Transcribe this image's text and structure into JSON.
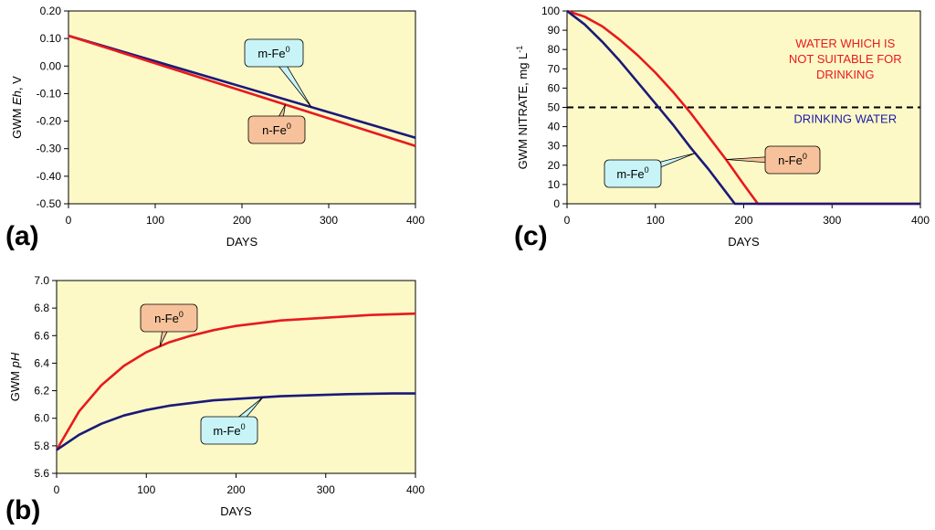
{
  "chart_data": [
    {
      "id": "a",
      "type": "line",
      "panel_label": "(a)",
      "xlabel": "DAYS",
      "ylabel_prefix": "GWM ",
      "ylabel_italic": "Eh",
      "ylabel_suffix": ", V",
      "xlim": [
        0,
        400
      ],
      "ylim": [
        -0.5,
        0.2
      ],
      "xticks": [
        0,
        100,
        200,
        300,
        400
      ],
      "yticks": [
        0.2,
        0.1,
        0.0,
        -0.1,
        -0.2,
        -0.3,
        -0.4,
        -0.5
      ],
      "ytick_labels": [
        "0.20",
        "0.10",
        "0.00",
        "-0.10",
        "-0.20",
        "-0.30",
        "-0.40",
        "-0.50"
      ],
      "series": [
        {
          "name": "m-Fe0",
          "color": "#1a1a7a",
          "x": [
            0,
            400
          ],
          "y": [
            0.11,
            -0.26
          ]
        },
        {
          "name": "n-Fe0",
          "color": "#e8191f",
          "x": [
            0,
            400
          ],
          "y": [
            0.11,
            -0.29
          ]
        }
      ],
      "callouts": [
        {
          "text": "m-Fe",
          "sup": "0",
          "fill": "#c8f4f7",
          "series": "m-Fe0",
          "at_x": 280
        },
        {
          "text": "n-Fe",
          "sup": "0",
          "fill": "#f7c29b",
          "series": "n-Fe0",
          "at_x": 250
        }
      ]
    },
    {
      "id": "b",
      "type": "line",
      "panel_label": "(b)",
      "xlabel": "DAYS",
      "ylabel_prefix": "GWM ",
      "ylabel_italic": "pH",
      "ylabel_suffix": "",
      "xlim": [
        0,
        400
      ],
      "ylim": [
        5.6,
        7.0
      ],
      "xticks": [
        0,
        100,
        200,
        300,
        400
      ],
      "yticks": [
        7.0,
        6.8,
        6.6,
        6.4,
        6.2,
        6.0,
        5.8,
        5.6
      ],
      "ytick_labels": [
        "7.0",
        "6.8",
        "6.6",
        "6.4",
        "6.2",
        "6.0",
        "5.8",
        "5.6"
      ],
      "series": [
        {
          "name": "n-Fe0",
          "color": "#e8191f",
          "x": [
            0,
            25,
            50,
            75,
            100,
            125,
            150,
            175,
            200,
            225,
            250,
            275,
            300,
            325,
            350,
            375,
            400
          ],
          "y": [
            5.77,
            6.05,
            6.24,
            6.38,
            6.48,
            6.55,
            6.6,
            6.64,
            6.67,
            6.69,
            6.71,
            6.72,
            6.73,
            6.74,
            6.75,
            6.755,
            6.76
          ]
        },
        {
          "name": "m-Fe0",
          "color": "#1a1a7a",
          "x": [
            0,
            25,
            50,
            75,
            100,
            125,
            150,
            175,
            200,
            225,
            250,
            275,
            300,
            325,
            350,
            375,
            400
          ],
          "y": [
            5.77,
            5.88,
            5.96,
            6.02,
            6.06,
            6.09,
            6.11,
            6.13,
            6.14,
            6.15,
            6.16,
            6.165,
            6.17,
            6.175,
            6.178,
            6.18,
            6.18
          ]
        }
      ],
      "callouts": [
        {
          "text": "n-Fe",
          "sup": "0",
          "fill": "#f7c29b",
          "series": "n-Fe0",
          "at_x": 115
        },
        {
          "text": "m-Fe",
          "sup": "0",
          "fill": "#c8f4f7",
          "series": "m-Fe0",
          "at_x": 230
        }
      ]
    },
    {
      "id": "c",
      "type": "line",
      "panel_label": "(c)",
      "xlabel": "DAYS",
      "ylabel_prefix": "GWM NITRATE, mg L",
      "ylabel_italic": "",
      "ylabel_suffix": "",
      "ylabel_sup": "-1",
      "xlim": [
        0,
        400
      ],
      "ylim": [
        0,
        100
      ],
      "xticks": [
        0,
        100,
        200,
        300,
        400
      ],
      "yticks": [
        100,
        90,
        80,
        70,
        60,
        50,
        40,
        30,
        20,
        10,
        0
      ],
      "ytick_labels": [
        "100",
        "90",
        "80",
        "70",
        "60",
        "50",
        "40",
        "30",
        "20",
        "10",
        "0"
      ],
      "threshold": 50,
      "series": [
        {
          "name": "n-Fe0",
          "color": "#e8191f",
          "x": [
            0,
            20,
            40,
            60,
            80,
            100,
            120,
            140,
            160,
            180,
            200,
            216,
            230,
            400
          ],
          "y": [
            100,
            97,
            92,
            85,
            77,
            68,
            58,
            47,
            35,
            23,
            10,
            0,
            0,
            0
          ]
        },
        {
          "name": "m-Fe0",
          "color": "#1a1a7a",
          "x": [
            0,
            20,
            40,
            60,
            80,
            100,
            120,
            140,
            160,
            180,
            190,
            400
          ],
          "y": [
            100,
            93,
            84,
            74,
            63,
            52,
            41,
            29,
            18,
            6,
            0,
            0
          ]
        }
      ],
      "region_labels": [
        {
          "lines": [
            "WATER WHICH IS",
            "NOT SUITABLE FOR",
            "DRINKING"
          ],
          "color": "#e8191f",
          "cx": 315,
          "top_y": 81
        },
        {
          "lines": [
            "DRINKING WATER"
          ],
          "color": "#1a1aa6",
          "cx": 315,
          "top_y": 42
        }
      ],
      "callouts": [
        {
          "text": "m-Fe",
          "sup": "0",
          "fill": "#c8f4f7",
          "series": "m-Fe0",
          "at_x": 145
        },
        {
          "text": "n-Fe",
          "sup": "0",
          "fill": "#f7c29b",
          "series": "n-Fe0",
          "at_x": 180
        }
      ]
    }
  ]
}
